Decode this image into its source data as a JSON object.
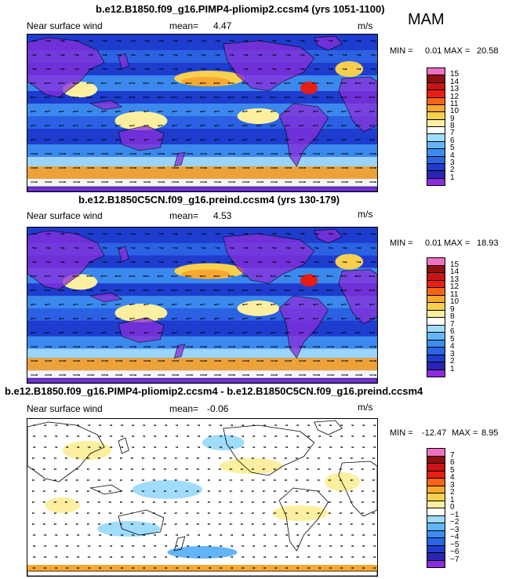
{
  "header": {
    "season": "MAM"
  },
  "panels": [
    {
      "title": "b.e12.B1850.f09_g16.PIMP4-pliomip2.ccsm4 (yrs 1051-1100)",
      "field": "Near surface wind",
      "mean_label": "mean=",
      "mean": "4.47",
      "units": "m/s",
      "min_label": "MIN =",
      "min": "0.01",
      "max_label": "MAX =",
      "max": "20.58",
      "colorbar_levels": [
        "15",
        "14",
        "13",
        "12",
        "11",
        "10",
        "9",
        "8",
        "7",
        "6",
        "5",
        "4",
        "3",
        "2",
        "1"
      ]
    },
    {
      "title": "b.e12.B1850C5CN.f09_g16.preind.ccsm4 (yrs 130-179)",
      "field": "Near surface wind",
      "mean_label": "mean=",
      "mean": "4.53",
      "units": "m/s",
      "min_label": "MIN =",
      "min": "0.01",
      "max_label": "MAX =",
      "max": "18.93",
      "colorbar_levels": [
        "15",
        "14",
        "13",
        "12",
        "11",
        "10",
        "9",
        "8",
        "7",
        "6",
        "5",
        "4",
        "3",
        "2",
        "1"
      ]
    },
    {
      "title": "b.e12.B1850.f09_g16.PIMP4-pliomip2.ccsm4 - b.e12.B1850C5CN.f09_g16.preind.ccsm4",
      "field": "Near surface wind",
      "mean_label": "mean=",
      "mean": "-0.06",
      "units": "m/s",
      "min_label": "MIN =",
      "min": "-12.47",
      "max_label": "MAX =",
      "max": "8.95",
      "colorbar_levels": [
        "7",
        "6",
        "5",
        "4",
        "3",
        "2",
        "1",
        "0",
        "−1",
        "−2",
        "−3",
        "−4",
        "−5",
        "−6",
        "−7"
      ]
    }
  ],
  "colors": {
    "abs_scale": [
      "#8b2cdc",
      "#2a24b4",
      "#1e3ccc",
      "#2a64e4",
      "#3c8cf0",
      "#64b4f8",
      "#a0dcfc",
      "#ffffff",
      "#fcf0a0",
      "#f8d050",
      "#f8a830",
      "#f86418",
      "#e81e14",
      "#c81414",
      "#901010",
      "#f070c0"
    ],
    "diff_scale": [
      "#8b2cdc",
      "#2a24b4",
      "#1e3ccc",
      "#2a64e4",
      "#3c8cf0",
      "#64b4f8",
      "#a0dcfc",
      "#ffffff",
      "#fcf0a0",
      "#f8d050",
      "#f8a830",
      "#f86418",
      "#e81e14",
      "#c81414",
      "#901010",
      "#f070c0"
    ]
  },
  "chart_data": [
    {
      "type": "heatmap",
      "title": "b.e12.B1850.f09_g16.PIMP4-pliomip2.ccsm4 (yrs 1051-1100)",
      "variable": "Near surface wind",
      "units": "m/s",
      "season": "MAM",
      "mean": 4.47,
      "min": 0.01,
      "max": 20.58,
      "levels": [
        1,
        2,
        3,
        4,
        5,
        6,
        7,
        8,
        9,
        10,
        11,
        12,
        13,
        14,
        15
      ]
    },
    {
      "type": "heatmap",
      "title": "b.e12.B1850C5CN.f09_g16.preind.ccsm4 (yrs 130-179)",
      "variable": "Near surface wind",
      "units": "m/s",
      "season": "MAM",
      "mean": 4.53,
      "min": 0.01,
      "max": 18.93,
      "levels": [
        1,
        2,
        3,
        4,
        5,
        6,
        7,
        8,
        9,
        10,
        11,
        12,
        13,
        14,
        15
      ]
    },
    {
      "type": "heatmap",
      "title": "b.e12.B1850.f09_g16.PIMP4-pliomip2.ccsm4 - b.e12.B1850C5CN.f09_g16.preind.ccsm4",
      "variable": "Near surface wind",
      "units": "m/s",
      "season": "MAM",
      "mean": -0.06,
      "min": -12.47,
      "max": 8.95,
      "levels": [
        -7,
        -6,
        -5,
        -4,
        -3,
        -2,
        -1,
        0,
        1,
        2,
        3,
        4,
        5,
        6,
        7
      ]
    }
  ]
}
